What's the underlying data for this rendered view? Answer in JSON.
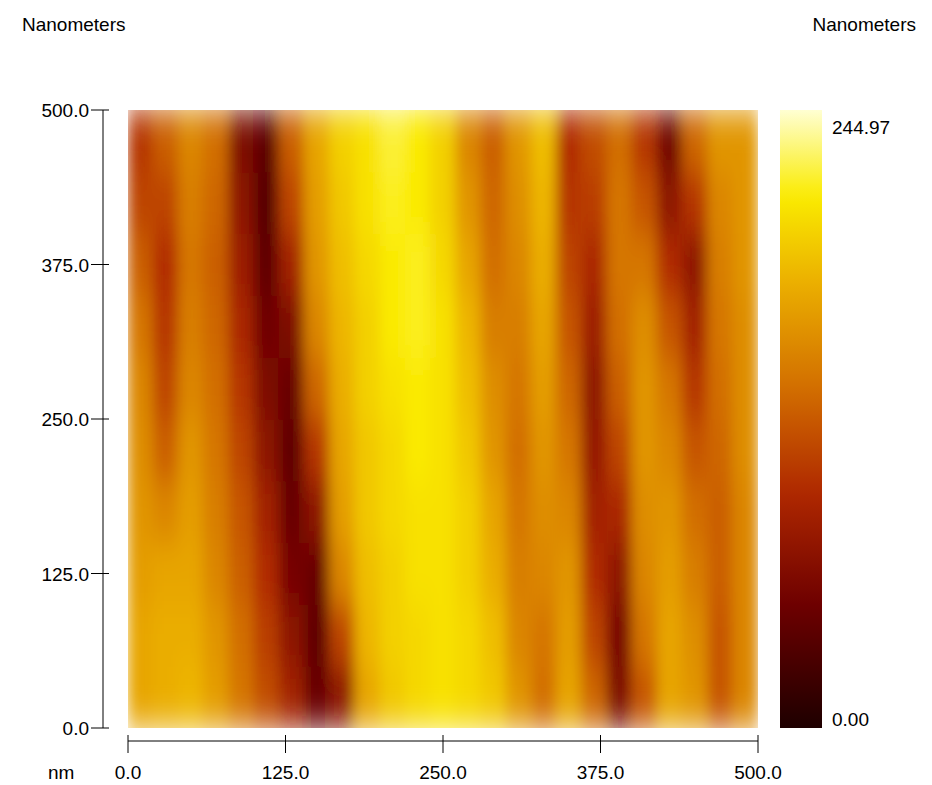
{
  "chart_data": {
    "type": "heatmap",
    "title_left": "Nanometers",
    "title_right": "Nanometers",
    "x_unit": "nm",
    "xlim": [
      0,
      500
    ],
    "ylim": [
      0,
      500
    ],
    "xticks": [
      {
        "value": 0,
        "label": "0.0"
      },
      {
        "value": 125,
        "label": "125.0"
      },
      {
        "value": 250,
        "label": "250.0"
      },
      {
        "value": 375,
        "label": "375.0"
      },
      {
        "value": 500,
        "label": "500.0"
      }
    ],
    "yticks": [
      {
        "value": 0,
        "label": "0.0"
      },
      {
        "value": 125,
        "label": "125.0"
      },
      {
        "value": 250,
        "label": "250.0"
      },
      {
        "value": 375,
        "label": "375.0"
      },
      {
        "value": 500,
        "label": "500.0"
      }
    ],
    "x": [
      10,
      30,
      50,
      70,
      90,
      110,
      130,
      150,
      170,
      190,
      210,
      230,
      250,
      270,
      290,
      310,
      330,
      350,
      370,
      390,
      410,
      430,
      450,
      470,
      490
    ],
    "y": [
      25,
      75,
      125,
      175,
      225,
      275,
      325,
      375,
      425,
      475
    ],
    "values": [
      [
        170,
        175,
        180,
        165,
        140,
        115,
        85,
        45,
        70,
        170,
        190,
        200,
        205,
        200,
        190,
        160,
        135,
        170,
        130,
        60,
        120,
        170,
        160,
        120,
        150
      ],
      [
        170,
        175,
        175,
        160,
        135,
        105,
        70,
        40,
        110,
        180,
        195,
        200,
        205,
        200,
        185,
        150,
        140,
        165,
        110,
        55,
        140,
        170,
        155,
        120,
        150
      ],
      [
        165,
        170,
        170,
        150,
        125,
        95,
        55,
        45,
        150,
        185,
        195,
        205,
        205,
        195,
        175,
        145,
        150,
        160,
        95,
        70,
        150,
        165,
        145,
        125,
        150
      ],
      [
        160,
        150,
        165,
        145,
        120,
        85,
        45,
        70,
        165,
        190,
        200,
        205,
        205,
        195,
        170,
        140,
        155,
        150,
        85,
        90,
        155,
        160,
        135,
        125,
        150
      ],
      [
        155,
        125,
        160,
        140,
        110,
        70,
        40,
        100,
        170,
        190,
        200,
        210,
        205,
        190,
        160,
        135,
        160,
        140,
        75,
        110,
        160,
        150,
        120,
        130,
        155
      ],
      [
        150,
        110,
        150,
        135,
        100,
        60,
        45,
        130,
        175,
        195,
        205,
        210,
        205,
        185,
        155,
        140,
        165,
        130,
        70,
        125,
        160,
        140,
        100,
        135,
        155
      ],
      [
        140,
        100,
        145,
        130,
        90,
        50,
        60,
        150,
        180,
        195,
        210,
        215,
        205,
        180,
        145,
        145,
        170,
        120,
        80,
        135,
        155,
        120,
        85,
        140,
        155
      ],
      [
        125,
        95,
        140,
        125,
        80,
        40,
        85,
        160,
        185,
        200,
        210,
        215,
        200,
        170,
        135,
        150,
        175,
        110,
        90,
        140,
        140,
        95,
        70,
        145,
        160
      ],
      [
        110,
        110,
        145,
        130,
        70,
        35,
        110,
        165,
        190,
        205,
        215,
        210,
        195,
        160,
        130,
        155,
        180,
        100,
        105,
        140,
        120,
        70,
        100,
        150,
        160
      ],
      [
        100,
        125,
        150,
        135,
        60,
        40,
        125,
        170,
        195,
        205,
        220,
        210,
        195,
        150,
        125,
        160,
        185,
        95,
        115,
        135,
        100,
        50,
        130,
        160,
        160
      ]
    ],
    "colorbar": {
      "range": [
        0,
        244.97
      ],
      "ticks": [
        {
          "value": 0,
          "label": "0.00"
        },
        {
          "value": 244.97,
          "label": "244.97"
        }
      ]
    }
  }
}
